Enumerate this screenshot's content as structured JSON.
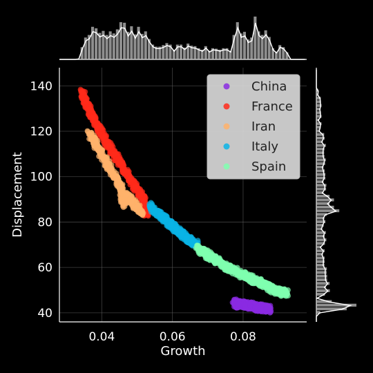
{
  "chart_data": {
    "type": "scatter",
    "title": "",
    "xlabel": "Growth",
    "ylabel": "Displacement",
    "xlim": [
      0.028,
      0.098
    ],
    "ylim": [
      36,
      148
    ],
    "xticks": [
      0.04,
      0.06,
      0.08
    ],
    "xtick_labels": [
      "0.04",
      "0.06",
      "0.08"
    ],
    "yticks": [
      40,
      60,
      80,
      100,
      120,
      140
    ],
    "ytick_labels": [
      "40",
      "60",
      "80",
      "100",
      "120",
      "140"
    ],
    "grid": true,
    "legend_position": "top-right",
    "marginal_histograms": true,
    "series": [
      {
        "name": "China",
        "color": "#8a2be2",
        "points": [
          [
            0.0775,
            44.5
          ],
          [
            0.079,
            44.0
          ],
          [
            0.0805,
            43.6
          ],
          [
            0.082,
            43.2
          ],
          [
            0.0835,
            42.7
          ],
          [
            0.085,
            42.3
          ],
          [
            0.0865,
            41.9
          ],
          [
            0.0875,
            41.6
          ],
          [
            0.0785,
            43.7
          ],
          [
            0.084,
            42.0
          ]
        ]
      },
      {
        "name": "France",
        "color": "#ff2a1a",
        "points": [
          [
            0.0345,
            137.0
          ],
          [
            0.0355,
            133.0
          ],
          [
            0.0365,
            129.5
          ],
          [
            0.0375,
            126.0
          ],
          [
            0.039,
            121.5
          ],
          [
            0.0405,
            117.5
          ],
          [
            0.042,
            113.5
          ],
          [
            0.0435,
            110.0
          ],
          [
            0.045,
            106.5
          ],
          [
            0.0465,
            102.5
          ],
          [
            0.048,
            99.0
          ],
          [
            0.0495,
            95.5
          ],
          [
            0.051,
            92.0
          ],
          [
            0.052,
            89.0
          ],
          [
            0.0535,
            86.0
          ],
          [
            0.0525,
            84.0
          ]
        ]
      },
      {
        "name": "Iran",
        "color": "#ffb26b",
        "points": [
          [
            0.0365,
            119.0
          ],
          [
            0.038,
            115.0
          ],
          [
            0.0395,
            111.0
          ],
          [
            0.041,
            107.0
          ],
          [
            0.0425,
            103.0
          ],
          [
            0.044,
            99.0
          ],
          [
            0.0455,
            95.5
          ],
          [
            0.047,
            92.0
          ],
          [
            0.0485,
            89.0
          ],
          [
            0.05,
            86.5
          ],
          [
            0.0515,
            84.0
          ],
          [
            0.046,
            88.0
          ]
        ]
      },
      {
        "name": "Italy",
        "color": "#0ab4e6",
        "points": [
          [
            0.0535,
            87.0
          ],
          [
            0.055,
            85.0
          ],
          [
            0.0565,
            83.0
          ],
          [
            0.058,
            81.0
          ],
          [
            0.0595,
            79.0
          ],
          [
            0.061,
            77.0
          ],
          [
            0.0625,
            75.0
          ],
          [
            0.064,
            73.0
          ],
          [
            0.0655,
            71.5
          ],
          [
            0.067,
            70.0
          ]
        ]
      },
      {
        "name": "Spain",
        "color": "#7fffaf",
        "points": [
          [
            0.067,
            68.5
          ],
          [
            0.069,
            66.5
          ],
          [
            0.071,
            64.5
          ],
          [
            0.073,
            62.5
          ],
          [
            0.075,
            60.5
          ],
          [
            0.077,
            59.0
          ],
          [
            0.079,
            57.5
          ],
          [
            0.081,
            56.0
          ],
          [
            0.083,
            54.5
          ],
          [
            0.085,
            53.0
          ],
          [
            0.087,
            51.5
          ],
          [
            0.089,
            50.0
          ],
          [
            0.091,
            49.0
          ],
          [
            0.0925,
            48.5
          ]
        ]
      }
    ]
  }
}
